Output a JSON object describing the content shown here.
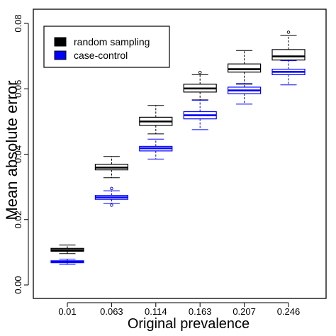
{
  "chart_data": {
    "type": "boxplot",
    "xlabel": "Original prevalence",
    "ylabel": "Mean absolute error",
    "categories": [
      "0.01",
      "0.063",
      "0.114",
      "0.163",
      "0.207",
      "0.246"
    ],
    "y_ticks": [
      "0.00",
      "0.02",
      "0.04",
      "0.06",
      "0.08"
    ],
    "ylim": [
      0,
      0.08
    ],
    "legend_position": "top-left",
    "grid": false,
    "series": [
      {
        "name": "random sampling",
        "color": "#000000",
        "boxes": [
          {
            "whisker_low": 0.0096,
            "q1": 0.0103,
            "median": 0.0107,
            "q3": 0.0112,
            "whisker_high": 0.0122,
            "outliers": []
          },
          {
            "whisker_low": 0.0328,
            "q1": 0.0352,
            "median": 0.0359,
            "q3": 0.0369,
            "whisker_high": 0.0393,
            "outliers": []
          },
          {
            "whisker_low": 0.0462,
            "q1": 0.0488,
            "median": 0.05,
            "q3": 0.0513,
            "whisker_high": 0.0549,
            "outliers": []
          },
          {
            "whisker_low": 0.0566,
            "q1": 0.059,
            "median": 0.0601,
            "q3": 0.0614,
            "whisker_high": 0.0643,
            "outliers": [
              0.065
            ]
          },
          {
            "whisker_low": 0.0614,
            "q1": 0.0651,
            "median": 0.066,
            "q3": 0.0676,
            "whisker_high": 0.0717,
            "outliers": []
          },
          {
            "whisker_low": 0.0643,
            "q1": 0.0688,
            "median": 0.0699,
            "q3": 0.072,
            "whisker_high": 0.0763,
            "outliers": [
              0.0773
            ]
          }
        ]
      },
      {
        "name": "case-control",
        "color": "#0000ff",
        "boxes": [
          {
            "whisker_low": 0.0063,
            "q1": 0.0068,
            "median": 0.0071,
            "q3": 0.0074,
            "whisker_high": 0.0079,
            "outliers": []
          },
          {
            "whisker_low": 0.0249,
            "q1": 0.0262,
            "median": 0.0268,
            "q3": 0.0274,
            "whisker_high": 0.0288,
            "outliers": [
              0.0295,
              0.0244
            ]
          },
          {
            "whisker_low": 0.0385,
            "q1": 0.041,
            "median": 0.0418,
            "q3": 0.0424,
            "whisker_high": 0.0446,
            "outliers": []
          },
          {
            "whisker_low": 0.0475,
            "q1": 0.0508,
            "median": 0.0519,
            "q3": 0.053,
            "whisker_high": 0.0565,
            "outliers": []
          },
          {
            "whisker_low": 0.0553,
            "q1": 0.0585,
            "median": 0.0595,
            "q3": 0.0605,
            "whisker_high": 0.0616,
            "outliers": []
          },
          {
            "whisker_low": 0.0612,
            "q1": 0.0643,
            "median": 0.0652,
            "q3": 0.066,
            "whisker_high": 0.0686,
            "outliers": []
          }
        ]
      }
    ]
  }
}
